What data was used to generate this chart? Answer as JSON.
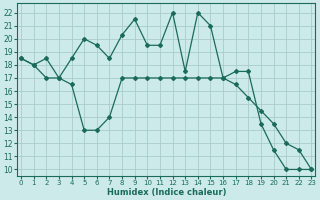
{
  "xlabel": "Humidex (Indice chaleur)",
  "bg_color": "#cceaea",
  "grid_color": "#aacccc",
  "line_color": "#1a6b5a",
  "xlim": [
    -0.3,
    23.3
  ],
  "ylim": [
    9.5,
    22.7
  ],
  "line1_x": [
    0,
    1,
    2,
    3,
    4,
    5,
    6,
    7,
    8,
    9,
    10,
    11,
    12,
    13,
    14,
    15,
    16,
    17,
    18,
    19,
    20,
    21,
    22,
    23
  ],
  "line1_y": [
    18.5,
    18.0,
    18.5,
    17.0,
    18.5,
    20.0,
    19.5,
    18.5,
    20.3,
    21.5,
    19.5,
    19.5,
    22.0,
    17.5,
    22.0,
    21.0,
    17.0,
    17.5,
    17.5,
    13.5,
    11.5,
    10.0,
    10.0,
    10.0
  ],
  "line2_x": [
    0,
    1,
    2,
    3,
    4,
    5,
    6,
    7,
    8,
    9,
    10,
    11,
    12,
    13,
    14,
    15,
    16,
    17,
    18,
    19,
    20,
    21,
    22,
    23
  ],
  "line2_y": [
    18.5,
    18.0,
    17.0,
    17.0,
    16.5,
    13.0,
    13.0,
    14.0,
    17.0,
    17.0,
    17.0,
    17.0,
    17.0,
    17.0,
    17.0,
    17.0,
    17.0,
    16.5,
    15.5,
    14.5,
    13.5,
    12.0,
    11.5,
    10.0
  ],
  "yticks": [
    10,
    11,
    12,
    13,
    14,
    15,
    16,
    17,
    18,
    19,
    20,
    21,
    22
  ],
  "xticks": [
    0,
    1,
    2,
    3,
    4,
    5,
    6,
    7,
    8,
    9,
    10,
    11,
    12,
    13,
    14,
    15,
    16,
    17,
    18,
    19,
    20,
    21,
    22,
    23
  ]
}
